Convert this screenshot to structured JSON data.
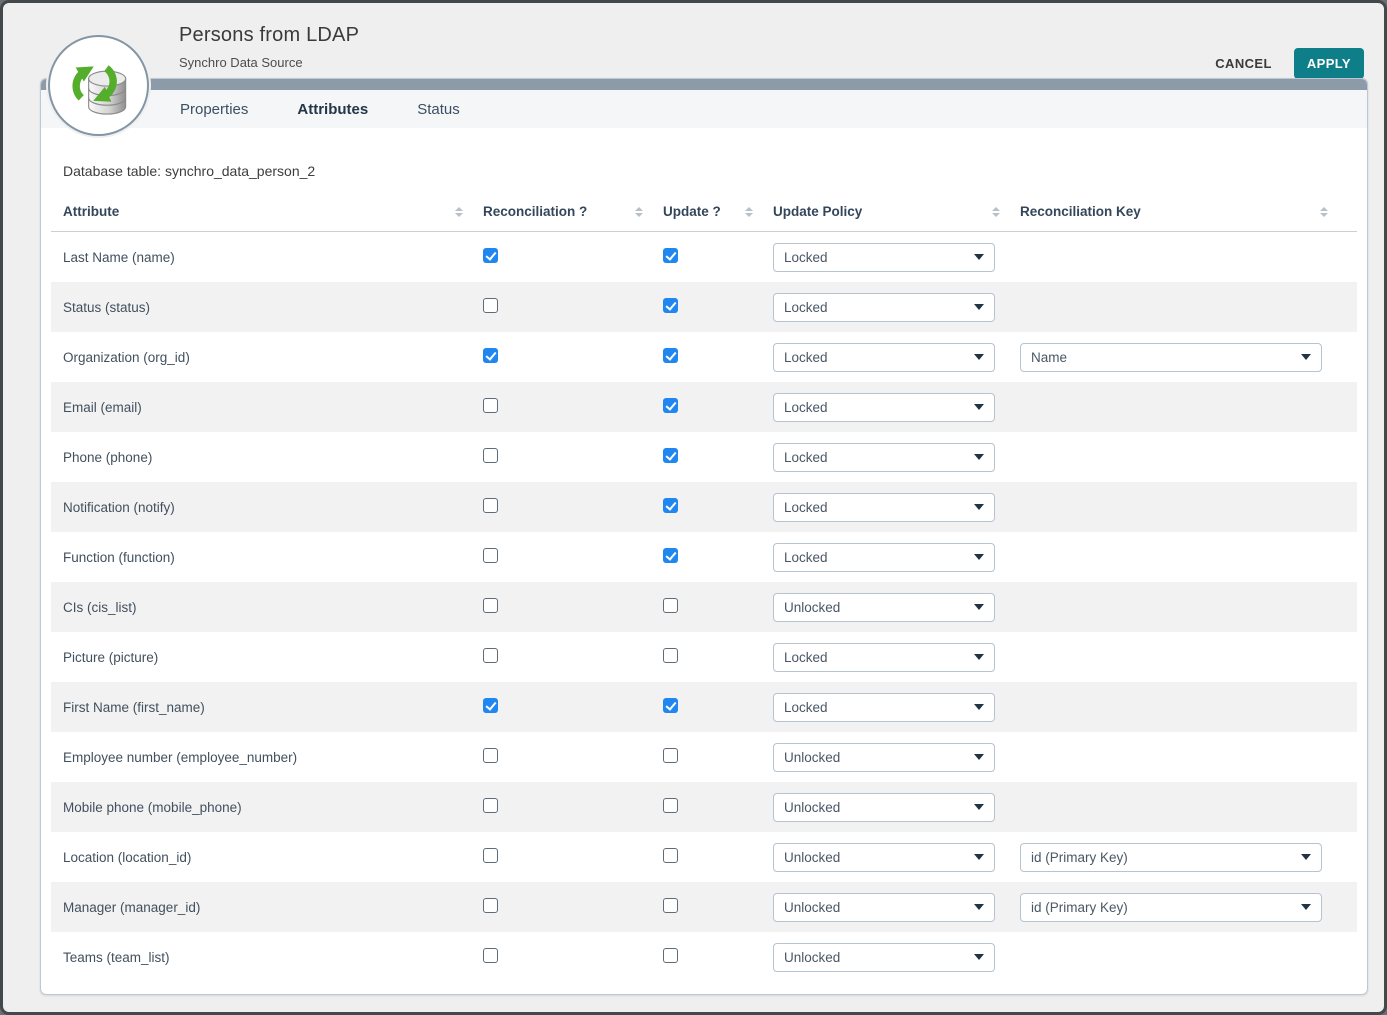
{
  "header": {
    "title": "Persons from LDAP",
    "subtitle": "Synchro Data Source",
    "cancel_label": "CANCEL",
    "apply_label": "APPLY"
  },
  "tabs": [
    {
      "label": "Properties",
      "active": false
    },
    {
      "label": "Attributes",
      "active": true
    },
    {
      "label": "Status",
      "active": false
    }
  ],
  "table": {
    "caption": "Database table: synchro_data_person_2",
    "columns": [
      "Attribute",
      "Reconciliation ?",
      "Update ?",
      "Update Policy",
      "Reconciliation Key"
    ],
    "rows": [
      {
        "attribute": "Last Name (name)",
        "reconciliation": true,
        "update": true,
        "update_policy": "Locked",
        "reconciliation_key": null
      },
      {
        "attribute": "Status (status)",
        "reconciliation": false,
        "update": true,
        "update_policy": "Locked",
        "reconciliation_key": null
      },
      {
        "attribute": "Organization (org_id)",
        "reconciliation": true,
        "update": true,
        "update_policy": "Locked",
        "reconciliation_key": "Name"
      },
      {
        "attribute": "Email (email)",
        "reconciliation": false,
        "update": true,
        "update_policy": "Locked",
        "reconciliation_key": null
      },
      {
        "attribute": "Phone (phone)",
        "reconciliation": false,
        "update": true,
        "update_policy": "Locked",
        "reconciliation_key": null
      },
      {
        "attribute": "Notification (notify)",
        "reconciliation": false,
        "update": true,
        "update_policy": "Locked",
        "reconciliation_key": null
      },
      {
        "attribute": "Function (function)",
        "reconciliation": false,
        "update": true,
        "update_policy": "Locked",
        "reconciliation_key": null
      },
      {
        "attribute": "CIs (cis_list)",
        "reconciliation": false,
        "update": false,
        "update_policy": "Unlocked",
        "reconciliation_key": null
      },
      {
        "attribute": "Picture (picture)",
        "reconciliation": false,
        "update": false,
        "update_policy": "Locked",
        "reconciliation_key": null
      },
      {
        "attribute": "First Name (first_name)",
        "reconciliation": true,
        "update": true,
        "update_policy": "Locked",
        "reconciliation_key": null
      },
      {
        "attribute": "Employee number (employee_number)",
        "reconciliation": false,
        "update": false,
        "update_policy": "Unlocked",
        "reconciliation_key": null
      },
      {
        "attribute": "Mobile phone (mobile_phone)",
        "reconciliation": false,
        "update": false,
        "update_policy": "Unlocked",
        "reconciliation_key": null
      },
      {
        "attribute": "Location (location_id)",
        "reconciliation": false,
        "update": false,
        "update_policy": "Unlocked",
        "reconciliation_key": "id (Primary Key)"
      },
      {
        "attribute": "Manager (manager_id)",
        "reconciliation": false,
        "update": false,
        "update_policy": "Unlocked",
        "reconciliation_key": "id (Primary Key)"
      },
      {
        "attribute": "Teams (team_list)",
        "reconciliation": false,
        "update": false,
        "update_policy": "Unlocked",
        "reconciliation_key": null
      }
    ]
  },
  "icons": {
    "badge": "synchro-datasource-icon",
    "sort": "sort-icon",
    "caret": "chevron-down-icon"
  },
  "colors": {
    "apply_button": "#0e7e88",
    "checkbox_checked": "#2187f0",
    "tab_accent_bar": "#8d9aa8",
    "row_alternate": "#f2f2f2",
    "panel_border": "#bcc8d3",
    "sync_arrow_green": "#54ad2b"
  }
}
